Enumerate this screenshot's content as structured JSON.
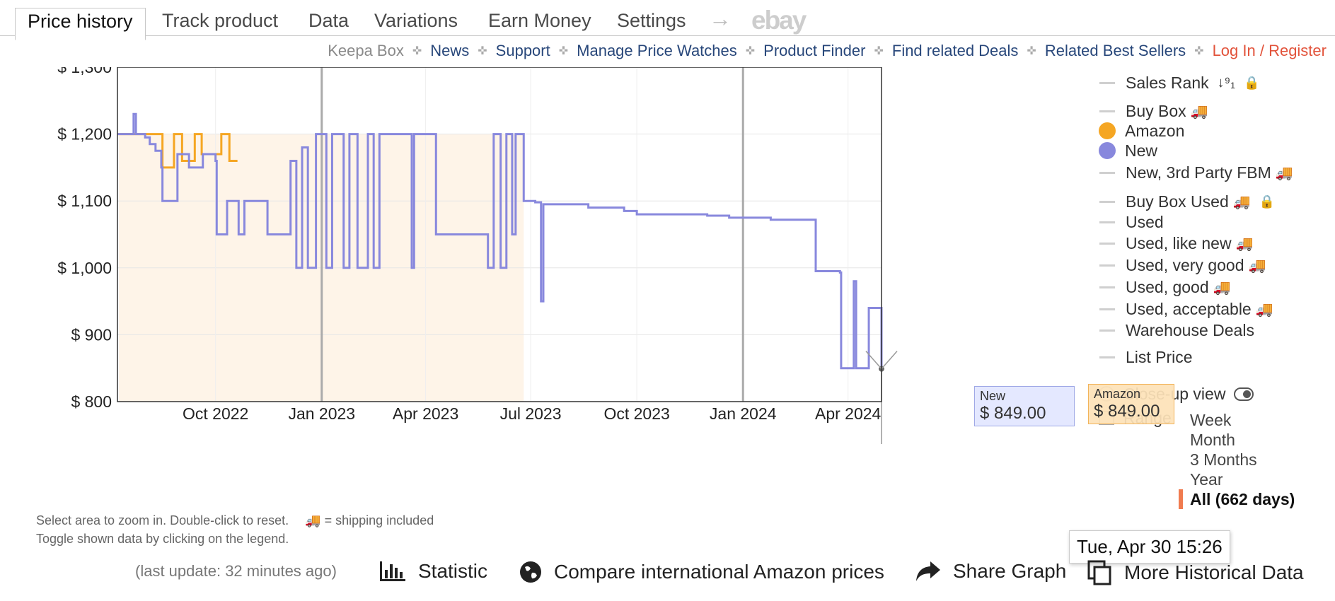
{
  "tabs": [
    {
      "label": "Price history",
      "active": true
    },
    {
      "label": "Track product"
    },
    {
      "label": "Data"
    },
    {
      "label": "Variations"
    },
    {
      "label": "Earn Money"
    },
    {
      "label": "Settings"
    }
  ],
  "tab_extra": {
    "arrow": "→",
    "ebay": "ebay"
  },
  "links": {
    "keepa_box": "Keepa Box",
    "news": "News",
    "support": "Support",
    "manage": "Manage Price Watches",
    "finder": "Product Finder",
    "deals": "Find related Deals",
    "best": "Related Best Sellers",
    "login": "Log In / Register",
    "separator": "✜"
  },
  "legend": {
    "sales_rank": "Sales Rank",
    "sales_rank_icon": "↓⁹₁",
    "buy_box": "Buy Box",
    "amazon": "Amazon",
    "new": "New",
    "new_fbm": "New, 3rd Party FBM",
    "buy_box_used": "Buy Box Used",
    "used": "Used",
    "used_like_new": "Used, like new",
    "used_very_good": "Used, very good",
    "used_good": "Used, good",
    "used_acceptable": "Used, acceptable",
    "warehouse": "Warehouse Deals",
    "list_price": "List Price",
    "closeup": "Close-up view",
    "range_label": "Range",
    "truck": "🚚",
    "lock": "🔒"
  },
  "range": {
    "options": [
      "Week",
      "Month",
      "3 Months",
      "Year"
    ],
    "selected": "All (662 days)"
  },
  "tooltips": {
    "new_label": "New",
    "new_value": "$ 849.00",
    "amazon_label": "Amazon",
    "amazon_value": "$ 849.00",
    "date": "Tue, Apr 30 15:26"
  },
  "help": {
    "line1": "Select area to zoom in. Double-click to reset.",
    "shipping": "🚚 = shipping included",
    "line2": "Toggle shown data by clicking on the legend."
  },
  "last_update": "(last update: 32 minutes ago)",
  "actions": {
    "statistic": "Statistic",
    "compare": "Compare international Amazon prices",
    "share": "Share Graph",
    "more": "More Historical Data"
  },
  "colors": {
    "new": "#8888dd",
    "amazon": "#f5a623",
    "amazon_fill": "#fdebd6",
    "login": "#e2533b"
  },
  "chart_data": {
    "type": "line",
    "x_start": "2022-07-08",
    "x_end": "2024-04-30",
    "ylim": [
      800,
      1300
    ],
    "y_ticks": [
      800,
      900,
      1000,
      1100,
      1200,
      1300
    ],
    "y_tick_labels": [
      "$ 800",
      "$ 900",
      "$ 1,000",
      "$ 1,100",
      "$ 1,200",
      "$ 1,300"
    ],
    "x_ticks": [
      "2022-10-01",
      "2023-01-01",
      "2023-04-01",
      "2023-07-01",
      "2023-10-01",
      "2024-01-01",
      "2024-04-01"
    ],
    "x_tick_labels": [
      "Oct 2022",
      "Jan 2023",
      "Apr 2023",
      "Jul 2023",
      "Oct 2023",
      "Jan 2024",
      "Apr 2024"
    ],
    "series": [
      {
        "name": "Amazon",
        "color": "#f5a623",
        "points": [
          [
            "2022-07-08",
            1200
          ],
          [
            "2022-07-20",
            1200
          ],
          [
            "2022-08-05",
            1200
          ],
          [
            "2022-08-15",
            1200
          ],
          [
            "2022-08-16",
            1150
          ],
          [
            "2022-08-25",
            1150
          ],
          [
            "2022-08-26",
            1200
          ],
          [
            "2022-09-01",
            1200
          ],
          [
            "2022-09-02",
            1160
          ],
          [
            "2022-09-12",
            1160
          ],
          [
            "2022-09-13",
            1200
          ],
          [
            "2022-09-18",
            1200
          ],
          [
            "2022-09-19",
            1170
          ],
          [
            "2022-10-05",
            1170
          ],
          [
            "2022-10-06",
            1200
          ],
          [
            "2022-10-12",
            1200
          ],
          [
            "2022-10-13",
            1160
          ],
          [
            "2022-10-20",
            1160
          ]
        ]
      },
      {
        "name": "New",
        "color": "#8888dd",
        "points": [
          [
            "2022-07-08",
            1200
          ],
          [
            "2022-07-20",
            1200
          ],
          [
            "2022-07-22",
            1230
          ],
          [
            "2022-07-24",
            1200
          ],
          [
            "2022-08-01",
            1195
          ],
          [
            "2022-08-05",
            1185
          ],
          [
            "2022-08-10",
            1175
          ],
          [
            "2022-08-15",
            1150
          ],
          [
            "2022-08-16",
            1100
          ],
          [
            "2022-08-28",
            1100
          ],
          [
            "2022-08-29",
            1170
          ],
          [
            "2022-09-08",
            1150
          ],
          [
            "2022-09-18",
            1150
          ],
          [
            "2022-09-20",
            1170
          ],
          [
            "2022-10-01",
            1160
          ],
          [
            "2022-10-02",
            1050
          ],
          [
            "2022-10-10",
            1050
          ],
          [
            "2022-10-11",
            1100
          ],
          [
            "2022-10-20",
            1100
          ],
          [
            "2022-10-21",
            1050
          ],
          [
            "2022-10-25",
            1050
          ],
          [
            "2022-10-26",
            1100
          ],
          [
            "2022-11-10",
            1100
          ],
          [
            "2022-11-15",
            1050
          ],
          [
            "2022-12-01",
            1050
          ],
          [
            "2022-12-05",
            1160
          ],
          [
            "2022-12-10",
            1000
          ],
          [
            "2022-12-15",
            1180
          ],
          [
            "2022-12-20",
            1000
          ],
          [
            "2022-12-27",
            1200
          ],
          [
            "2023-01-05",
            1000
          ],
          [
            "2023-01-10",
            1200
          ],
          [
            "2023-01-20",
            1000
          ],
          [
            "2023-01-25",
            1200
          ],
          [
            "2023-02-01",
            1000
          ],
          [
            "2023-02-10",
            1200
          ],
          [
            "2023-02-15",
            1000
          ],
          [
            "2023-02-20",
            1200
          ],
          [
            "2023-03-05",
            1200
          ],
          [
            "2023-03-10",
            1200
          ],
          [
            "2023-03-20",
            1000
          ],
          [
            "2023-03-22",
            1200
          ],
          [
            "2023-04-05",
            1200
          ],
          [
            "2023-04-10",
            1050
          ],
          [
            "2023-05-20",
            1050
          ],
          [
            "2023-05-25",
            1000
          ],
          [
            "2023-05-30",
            1200
          ],
          [
            "2023-06-05",
            1000
          ],
          [
            "2023-06-10",
            1200
          ],
          [
            "2023-06-15",
            1050
          ],
          [
            "2023-06-18",
            1200
          ],
          [
            "2023-06-25",
            1100
          ],
          [
            "2023-07-05",
            1098
          ],
          [
            "2023-07-10",
            950
          ],
          [
            "2023-07-12",
            1095
          ],
          [
            "2023-08-15",
            1095
          ],
          [
            "2023-08-20",
            1090
          ],
          [
            "2023-09-20",
            1085
          ],
          [
            "2023-10-01",
            1080
          ],
          [
            "2023-11-15",
            1080
          ],
          [
            "2023-12-01",
            1078
          ],
          [
            "2023-12-20",
            1075
          ],
          [
            "2024-01-25",
            1072
          ],
          [
            "2024-03-03",
            1072
          ],
          [
            "2024-03-04",
            995
          ],
          [
            "2024-03-25",
            993
          ],
          [
            "2024-03-26",
            850
          ],
          [
            "2024-04-05",
            850
          ],
          [
            "2024-04-06",
            980
          ],
          [
            "2024-04-08",
            850
          ],
          [
            "2024-04-18",
            850
          ],
          [
            "2024-04-19",
            940
          ],
          [
            "2024-04-28",
            940
          ],
          [
            "2024-04-30",
            849
          ]
        ]
      }
    ],
    "vertical_markers": [
      "2023-01-01",
      "2024-01-01"
    ]
  }
}
